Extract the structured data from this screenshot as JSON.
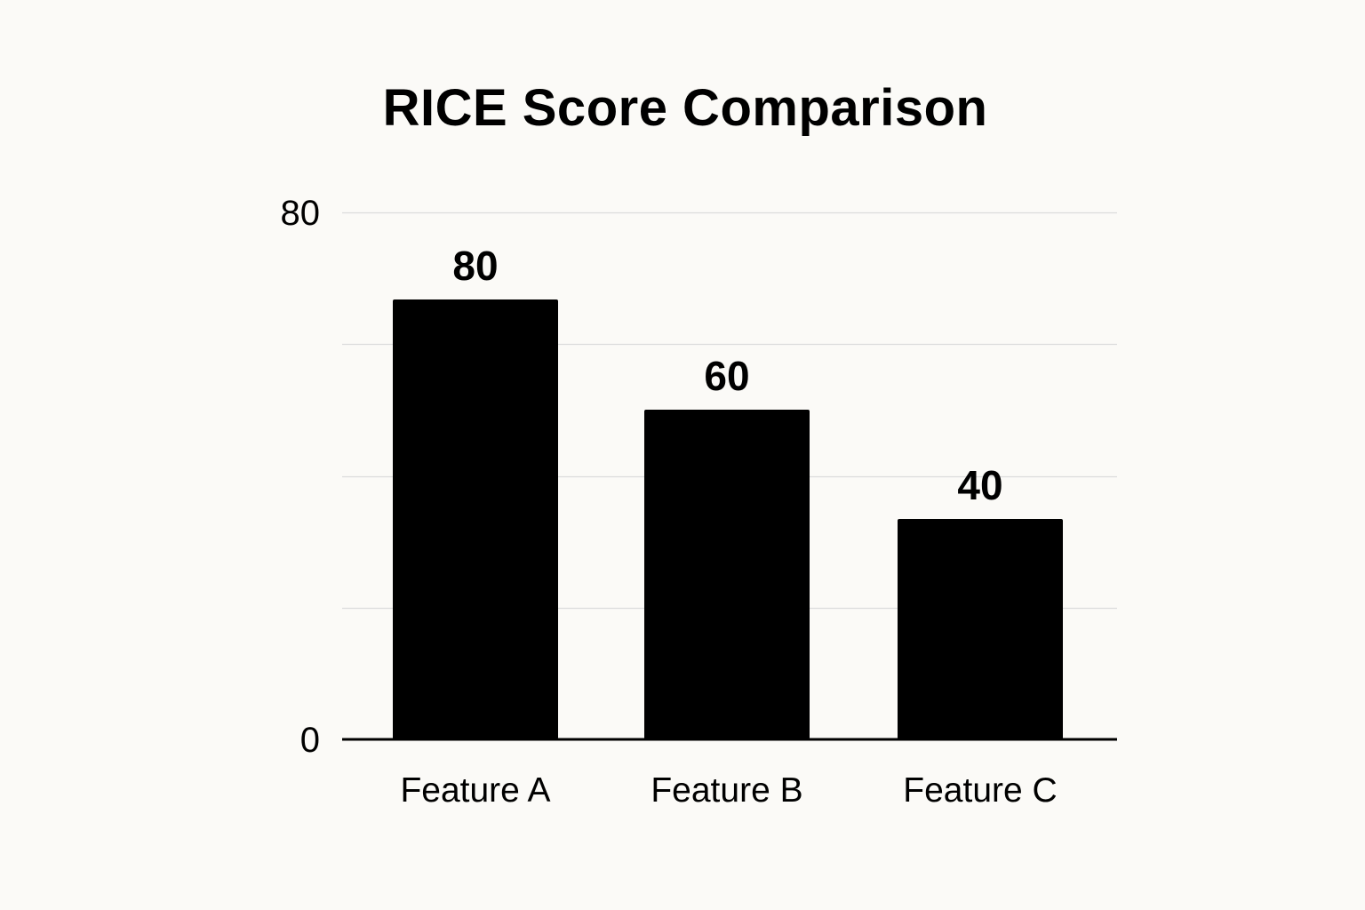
{
  "chart_data": {
    "type": "bar",
    "title": "RICE Score Comparison",
    "categories": [
      "Feature A",
      "Feature B",
      "Feature C"
    ],
    "values": [
      80,
      60,
      40
    ],
    "data_labels": [
      "80",
      "60",
      "40"
    ],
    "ylim": [
      0,
      80
    ],
    "y_ticks": [
      {
        "value": 0,
        "label": "0"
      },
      {
        "value": 80,
        "label": "80"
      }
    ],
    "grid": true,
    "grid_values": [
      20,
      40,
      60,
      80
    ],
    "xlabel": "",
    "ylabel": "",
    "colors": {
      "bar": "#000000",
      "grid": "#dcdcdc",
      "axis": "#000000",
      "background": "#fbfaf7"
    }
  }
}
